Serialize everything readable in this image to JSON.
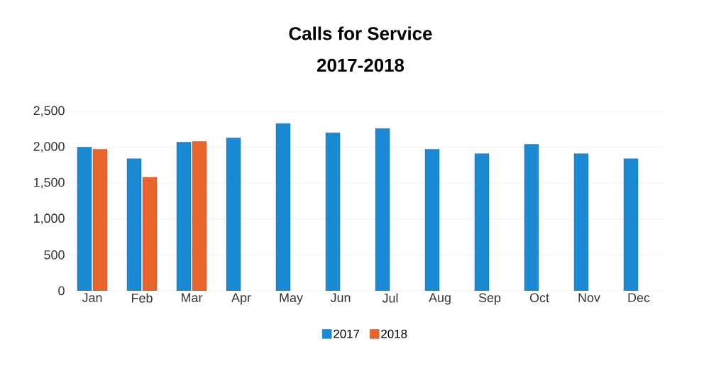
{
  "chart_data": {
    "type": "bar",
    "title": "Calls for Service",
    "subtitle": "2017-2018",
    "categories": [
      "Jan",
      "Feb",
      "Mar",
      "Apr",
      "May",
      "Jun",
      "Jul",
      "Aug",
      "Sep",
      "Oct",
      "Nov",
      "Dec"
    ],
    "series": [
      {
        "name": "2017",
        "color": "#1a8ad4",
        "values": [
          2000,
          1840,
          2070,
          2130,
          2330,
          2200,
          2260,
          1970,
          1910,
          2040,
          1910,
          1840
        ]
      },
      {
        "name": "2018",
        "color": "#e8642a",
        "values": [
          1970,
          1580,
          2080,
          null,
          null,
          null,
          null,
          null,
          null,
          null,
          null,
          null
        ]
      }
    ],
    "ylim": [
      0,
      2500
    ],
    "yticks": [
      0,
      500,
      {
        "value": 1000,
        "label": "1,000"
      },
      {
        "value": 1500,
        "label": "1,500"
      },
      {
        "value": 2000,
        "label": "2,000"
      },
      {
        "value": 2500,
        "label": "2,500"
      }
    ],
    "grid": "y",
    "legend": "bottom"
  }
}
